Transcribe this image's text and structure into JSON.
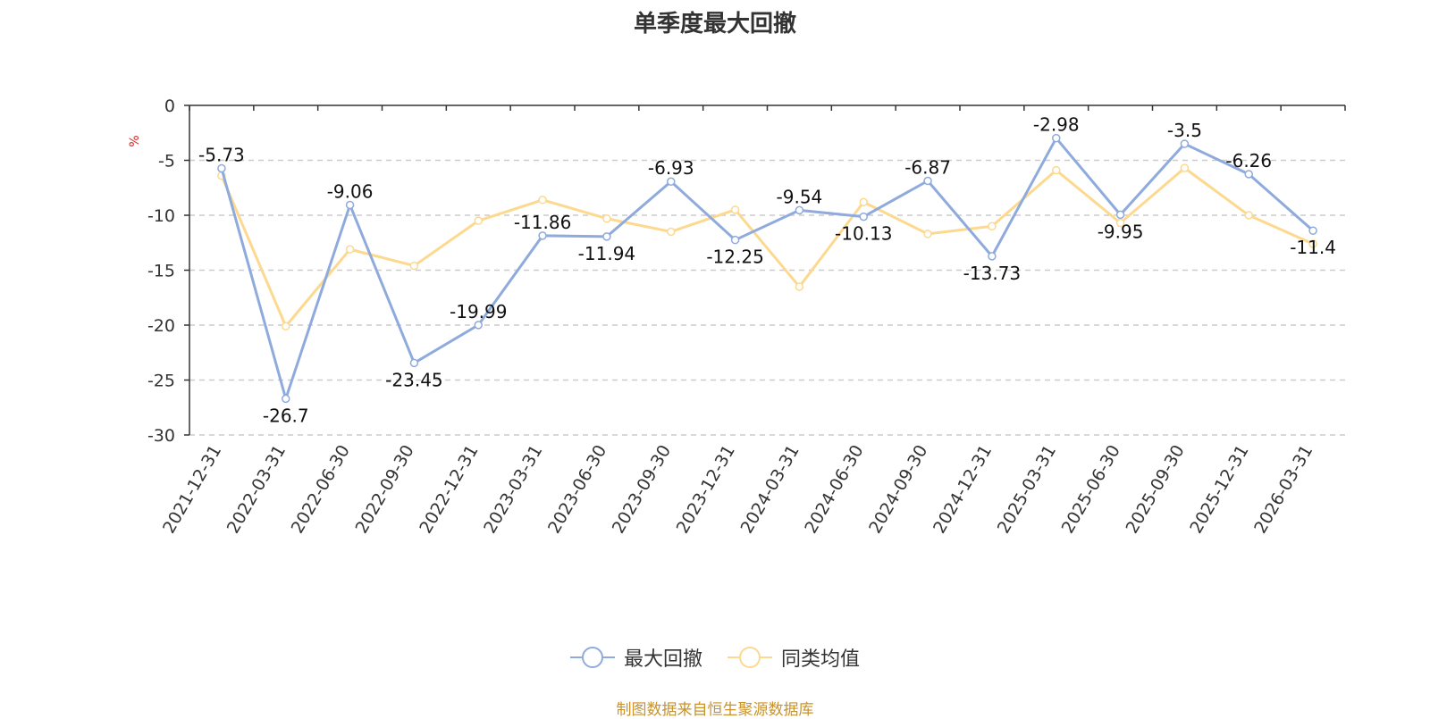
{
  "chart_data": {
    "type": "line",
    "title": "单季度最大回撤",
    "ylabel": "%",
    "xlabel": "",
    "ylim": [
      -30,
      0
    ],
    "yticks": [
      0,
      -5,
      -10,
      -15,
      -20,
      -25,
      -30
    ],
    "grid": true,
    "legend_position": "bottom",
    "categories": [
      "2021-12-31",
      "2022-03-31",
      "2022-06-30",
      "2022-09-30",
      "2022-12-31",
      "2023-03-31",
      "2023-06-30",
      "2023-09-30",
      "2023-12-31",
      "2024-03-31",
      "2024-06-30",
      "2024-09-30",
      "2024-12-31",
      "2025-03-31",
      "2025-06-30",
      "2025-09-30",
      "2025-12-31",
      "2026-03-31"
    ],
    "series": [
      {
        "name": "最大回撤",
        "color": "#8faadc",
        "values": [
          -5.73,
          -26.7,
          -9.06,
          -23.45,
          -19.99,
          -11.86,
          -11.94,
          -6.93,
          -12.25,
          -9.54,
          -10.13,
          -6.87,
          -13.73,
          -2.98,
          -9.95,
          -3.5,
          -6.26,
          -11.4
        ],
        "labels": [
          "-5.73",
          "-26.7",
          "-9.06",
          "-23.45",
          "-19.99",
          "-11.86",
          "-11.94",
          "-6.93",
          "-12.25",
          "-9.54",
          "-10.13",
          "-6.87",
          "-13.73",
          "-2.98",
          "-9.95",
          "-3.5",
          "-6.26",
          "-11.4"
        ],
        "show_labels": true
      },
      {
        "name": "同类均值",
        "color": "#fcd98f",
        "values": [
          -6.4,
          -20.1,
          -13.1,
          -14.6,
          -10.5,
          -8.6,
          -10.3,
          -11.5,
          -9.5,
          -16.5,
          -8.8,
          -11.7,
          -11.0,
          -5.9,
          -10.7,
          -5.7,
          -10.0,
          -12.6
        ],
        "show_labels": false
      }
    ]
  },
  "footer": "制图数据来自恒生聚源数据库"
}
